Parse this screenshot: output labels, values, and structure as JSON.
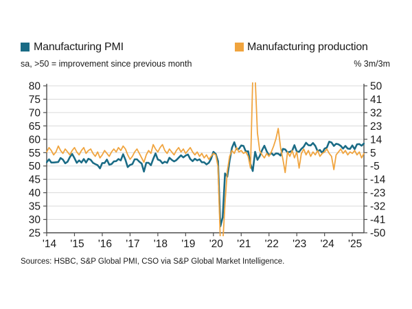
{
  "legend": {
    "pmi": {
      "label": "Manufacturing PMI",
      "sublabel": "sa, >50 = improvement since previous month",
      "color": "#1a6b85"
    },
    "production": {
      "label": "Manufacturing production",
      "sublabel": "% 3m/3m",
      "color": "#f0a43e"
    }
  },
  "footer": {
    "sources": "Sources: HSBC, S&P Global PMI, CSO via S&P Global Market Intelligence."
  },
  "chart_data": {
    "type": "line",
    "x_start": "2014-01",
    "x_end": "2025-06",
    "points_per_year": 12,
    "x_labels": [
      "'14",
      "'15",
      "'16",
      "'17",
      "'18",
      "'19",
      "'20",
      "'21",
      "'22",
      "'23",
      "'24",
      "'25"
    ],
    "grid": true,
    "grid_color": "#d9d9d9",
    "axis_color": "#4d4d4d",
    "legend_position": "top",
    "left_axis": {
      "series": "Manufacturing PMI",
      "ticks": [
        80,
        75,
        70,
        65,
        60,
        55,
        50,
        45,
        40,
        35,
        30,
        25
      ],
      "range": [
        25,
        80
      ]
    },
    "right_axis": {
      "series": "Manufacturing production",
      "label": "% 3m/3m",
      "ticks": [
        50,
        41,
        32,
        23,
        14,
        5,
        -5,
        -14,
        -23,
        -32,
        -41,
        -50
      ],
      "range": [
        -50,
        50
      ]
    },
    "series": [
      {
        "name": "Manufacturing PMI",
        "axis": "left",
        "color": "#1a6b85",
        "width": 2.6,
        "values": [
          51.4,
          52.5,
          51.3,
          51.3,
          51.4,
          51.5,
          53.0,
          52.4,
          51.0,
          51.6,
          53.3,
          54.5,
          52.9,
          51.2,
          52.1,
          51.3,
          52.6,
          51.3,
          52.7,
          52.3,
          51.2,
          50.7,
          50.3,
          49.1,
          51.1,
          51.1,
          52.4,
          50.5,
          50.7,
          51.7,
          51.8,
          52.6,
          52.1,
          54.4,
          52.3,
          49.6,
          50.4,
          50.7,
          52.5,
          52.5,
          51.6,
          50.9,
          47.9,
          51.2,
          51.2,
          50.3,
          52.6,
          54.7,
          52.4,
          52.1,
          51.0,
          51.6,
          51.2,
          53.1,
          52.3,
          51.7,
          52.2,
          53.1,
          54.0,
          53.2,
          53.9,
          54.3,
          52.6,
          51.8,
          52.7,
          52.1,
          52.5,
          51.4,
          51.4,
          50.6,
          51.2,
          52.7,
          55.3,
          54.5,
          51.8,
          27.4,
          30.8,
          47.2,
          46.0,
          52.0,
          56.8,
          58.9,
          56.3,
          56.4,
          57.7,
          57.5,
          55.4,
          55.5,
          50.8,
          48.1,
          55.3,
          52.3,
          53.7,
          55.9,
          57.6,
          55.5,
          54.0,
          54.9,
          54.0,
          54.7,
          54.6,
          53.9,
          56.4,
          56.2,
          55.1,
          55.3,
          55.7,
          57.8,
          55.4,
          55.3,
          56.4,
          57.2,
          58.7,
          57.8,
          57.7,
          58.6,
          57.5,
          55.5,
          56.0,
          54.9,
          56.5,
          56.9,
          59.1,
          58.8,
          57.5,
          58.3,
          58.1,
          57.5,
          56.5,
          57.5,
          56.5,
          56.4,
          57.7,
          56.3,
          58.1,
          58.2,
          57.6,
          58.4
        ]
      },
      {
        "name": "Manufacturing production",
        "axis": "right",
        "color": "#f0a43e",
        "width": 1.8,
        "values": [
          5,
          8,
          6,
          3,
          5,
          9,
          6,
          4,
          7,
          5,
          3,
          6,
          8,
          5,
          3,
          6,
          8,
          4,
          6,
          7,
          4,
          2,
          5,
          1,
          3,
          6,
          4,
          2,
          5,
          7,
          5,
          8,
          6,
          9,
          7,
          3,
          0,
          2,
          5,
          7,
          4,
          1,
          -2,
          3,
          6,
          4,
          10,
          7,
          5,
          8,
          10,
          6,
          4,
          7,
          5,
          3,
          6,
          8,
          5,
          7,
          4,
          6,
          8,
          5,
          3,
          5,
          2,
          4,
          1,
          3,
          0,
          2,
          4,
          3,
          -5,
          -56,
          -58,
          -30,
          -8,
          2,
          6,
          4,
          8,
          5,
          6,
          4,
          5,
          2,
          -6,
          56,
          57,
          18,
          6,
          3,
          1,
          4,
          2,
          5,
          9,
          14,
          21,
          8,
          0,
          -9,
          5,
          2,
          6,
          1,
          5,
          -6,
          4,
          7,
          3,
          6,
          2,
          5,
          3,
          6,
          2,
          4,
          5,
          7,
          4,
          2,
          -7,
          3,
          5,
          7,
          4,
          6,
          3,
          5,
          4,
          6,
          3,
          5,
          1,
          4
        ]
      }
    ]
  }
}
